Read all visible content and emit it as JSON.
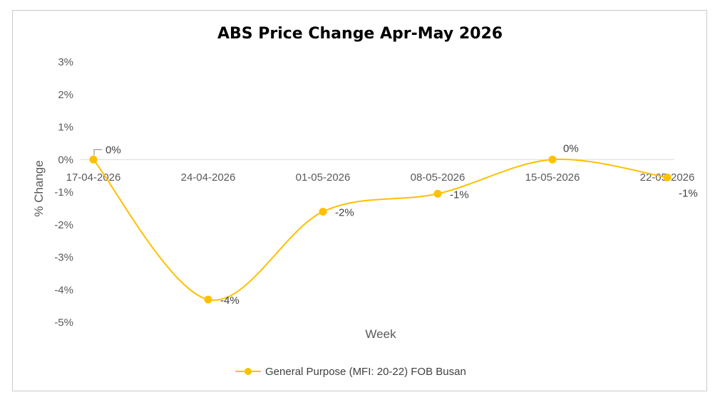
{
  "chart_data": {
    "type": "line",
    "title": "ABS Price Change Apr-May 2026",
    "xlabel": "Week",
    "ylabel": "% Change",
    "categories": [
      "17-04-2026",
      "24-04-2026",
      "01-05-2026",
      "08-05-2026",
      "15-05-2026",
      "22-05-2026"
    ],
    "series": [
      {
        "name": "General Purpose (MFI: 20-22) FOB Busan",
        "values": [
          0,
          -4.3,
          -1.6,
          -1.05,
          0,
          -0.55
        ],
        "labels": [
          "0%",
          "-4%",
          "-2%",
          "-1%",
          "0%",
          "-1%"
        ],
        "color": "#FFC000"
      }
    ],
    "yticks": [
      "3%",
      "2%",
      "1%",
      "0%",
      "-1%",
      "-2%",
      "-3%",
      "-4%",
      "-5%"
    ],
    "ylim": [
      -5,
      3
    ],
    "grid": false,
    "smooth": true,
    "legend": "bottom"
  }
}
